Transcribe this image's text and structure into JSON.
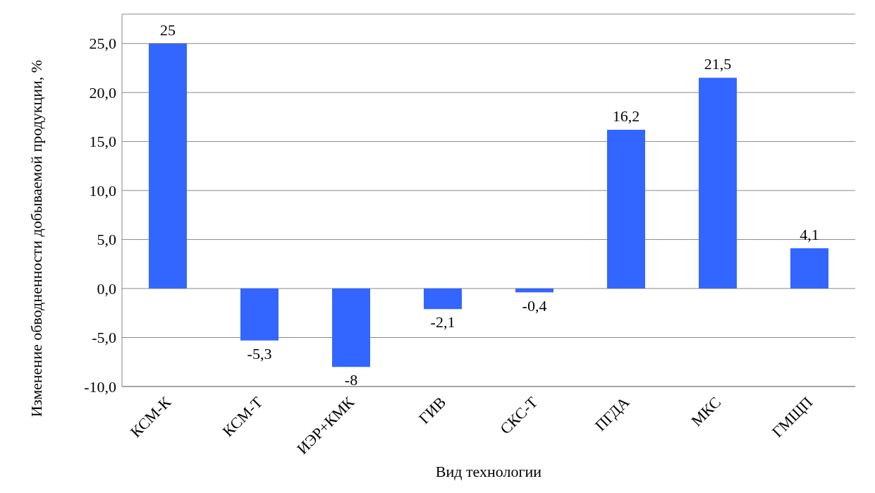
{
  "chart_data": {
    "type": "bar",
    "xlabel": "Вид технологии",
    "ylabel": "Изменение обводненности добываемой продукции, %",
    "categories": [
      "КСМ-К",
      "КСМ-Т",
      "ИЭР+КМК",
      "ГИВ",
      "СКС-Т",
      "ПГДА",
      "МКС",
      "ГМЩП"
    ],
    "values": [
      25,
      -5.3,
      -8,
      -2.1,
      -0.4,
      16.2,
      21.5,
      4.1
    ],
    "value_labels": [
      "25",
      "-5,3",
      "-8",
      "-2,1",
      "-0,4",
      "16,2",
      "21,5",
      "4,1"
    ],
    "color": "#3366ff",
    "ylim": [
      -10,
      28
    ],
    "yticks": [
      {
        "value": -10,
        "label": "-10,0"
      },
      {
        "value": -5,
        "label": "-5,0"
      },
      {
        "value": 0,
        "label": "0,0"
      },
      {
        "value": 5,
        "label": "5,0"
      },
      {
        "value": 10,
        "label": "10,0"
      },
      {
        "value": 15,
        "label": "15,0"
      },
      {
        "value": 20,
        "label": "20,0"
      },
      {
        "value": 25,
        "label": "25,0"
      }
    ],
    "grid": "y",
    "legend": false
  }
}
